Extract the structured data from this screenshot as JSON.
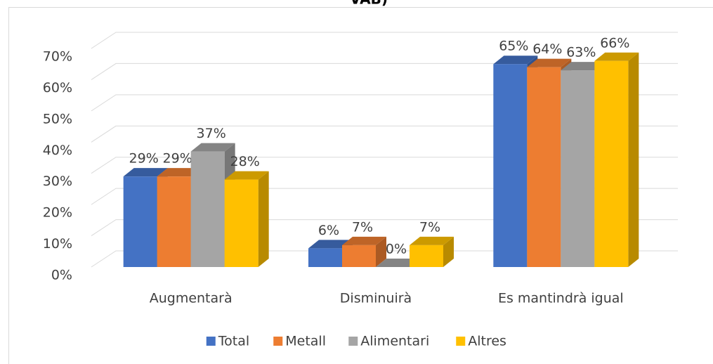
{
  "chart_data": {
    "type": "bar3d",
    "title": "VAB)",
    "categories": [
      "Augmentarà",
      "Disminuirà",
      "Es mantindrà igual"
    ],
    "series": [
      {
        "name": "Total",
        "color": "#4472c4",
        "values": [
          29,
          6,
          65
        ],
        "value_labels": [
          "29%",
          "6%",
          "65%"
        ]
      },
      {
        "name": "Metall",
        "color": "#ed7d31",
        "values": [
          29,
          7,
          64
        ],
        "value_labels": [
          "29%",
          "7%",
          "64%"
        ]
      },
      {
        "name": "Alimentari",
        "color": "#a5a5a5",
        "values": [
          37,
          0,
          63
        ],
        "value_labels": [
          "37%",
          "0%",
          "63%"
        ]
      },
      {
        "name": "Altres",
        "color": "#ffc000",
        "values": [
          28,
          7,
          66
        ],
        "value_labels": [
          "28%",
          "7%",
          "66%"
        ]
      }
    ],
    "ylim": [
      0,
      70
    ],
    "yticks": [
      {
        "value": 0,
        "label": "0%"
      },
      {
        "value": 10,
        "label": "10%"
      },
      {
        "value": 20,
        "label": "20%"
      },
      {
        "value": 30,
        "label": "30%"
      },
      {
        "value": 40,
        "label": "40%"
      },
      {
        "value": 50,
        "label": "50%"
      },
      {
        "value": 60,
        "label": "60%"
      },
      {
        "value": 70,
        "label": "70%"
      }
    ],
    "grid": true,
    "legend": "bottom"
  }
}
